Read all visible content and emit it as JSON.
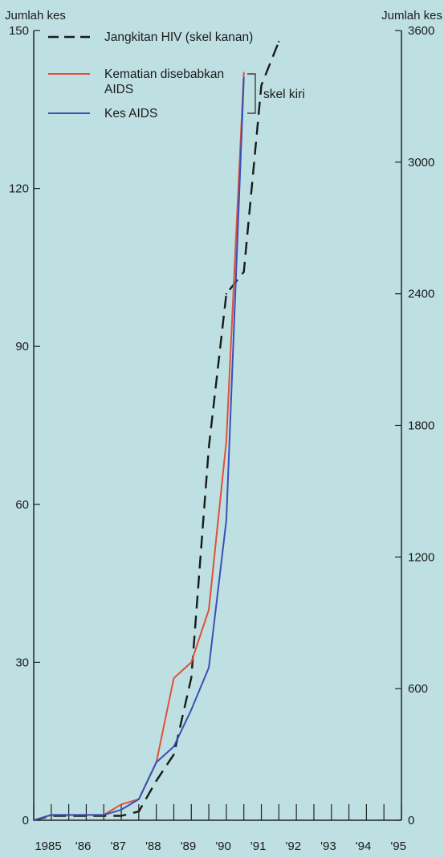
{
  "chart_data": {
    "type": "line",
    "left_axis_label": "Jumlah kes",
    "right_axis_label": "Jumlah kes",
    "x_categories": [
      "1985",
      "'86",
      "'87",
      "'88",
      "'89",
      "'90",
      "'91",
      "'92",
      "'93",
      "'94",
      "'95"
    ],
    "x": [
      1985,
      1985.5,
      1986,
      1986.5,
      1987,
      1987.5,
      1988,
      1988.5,
      1989,
      1989.5,
      1990,
      1990.5,
      1991,
      1991.5,
      1992,
      1992.5,
      1993,
      1993.5,
      1994,
      1994.5,
      1995,
      1995.5
    ],
    "left_axis": {
      "ylim": [
        0,
        150
      ],
      "ticks": [
        0,
        30,
        60,
        90,
        120,
        150
      ]
    },
    "right_axis": {
      "ylim": [
        0,
        3600
      ],
      "ticks": [
        0,
        600,
        1200,
        1800,
        2400,
        3000,
        3600
      ]
    },
    "series": [
      {
        "name": "Jangkitan HIV",
        "axis": "right",
        "color": "#1a1a1a",
        "dash": true,
        "points": [
          [
            1985,
            0
          ],
          [
            1985.5,
            20
          ],
          [
            1986,
            20
          ],
          [
            1986.5,
            20
          ],
          [
            1987,
            20
          ],
          [
            1987.5,
            20
          ],
          [
            1988,
            40
          ],
          [
            1988.5,
            180
          ],
          [
            1989,
            300
          ],
          [
            1989.5,
            650
          ],
          [
            1990,
            1700
          ],
          [
            1990.5,
            2400
          ],
          [
            1991,
            2500
          ],
          [
            1991.5,
            3350
          ],
          [
            1992,
            3550
          ]
        ]
      },
      {
        "name": "Kematian disebabkan AIDS",
        "axis": "left",
        "color": "#e0503a",
        "dash": false,
        "points": [
          [
            1985,
            0
          ],
          [
            1985.5,
            1
          ],
          [
            1986,
            1
          ],
          [
            1986.5,
            1
          ],
          [
            1987,
            1
          ],
          [
            1987.5,
            3
          ],
          [
            1988,
            4
          ],
          [
            1988.5,
            11
          ],
          [
            1989,
            27
          ],
          [
            1989.5,
            30
          ],
          [
            1990,
            40
          ],
          [
            1990.5,
            72
          ],
          [
            1991,
            142
          ]
        ]
      },
      {
        "name": "Kes AIDS",
        "axis": "left",
        "color": "#3a4fb5",
        "dash": false,
        "points": [
          [
            1985,
            0
          ],
          [
            1985.5,
            1
          ],
          [
            1986,
            1
          ],
          [
            1986.5,
            1
          ],
          [
            1987,
            1
          ],
          [
            1987.5,
            2
          ],
          [
            1988,
            4
          ],
          [
            1988.5,
            11
          ],
          [
            1989,
            14
          ],
          [
            1989.5,
            21
          ],
          [
            1990,
            29
          ],
          [
            1990.5,
            57
          ],
          [
            1991,
            141
          ]
        ]
      }
    ],
    "legend": {
      "position": "top-left",
      "items": [
        {
          "label": "Jangkitan HIV  (skel kanan)",
          "color": "#1a1a1a",
          "dash": true
        },
        {
          "label": "Kematian disebabkan",
          "label2": "AIDS",
          "color": "#e0503a",
          "dash": false
        },
        {
          "label": "Kes AIDS",
          "color": "#3a4fb5",
          "dash": false
        }
      ],
      "bracket_label": "skel kiri"
    }
  }
}
